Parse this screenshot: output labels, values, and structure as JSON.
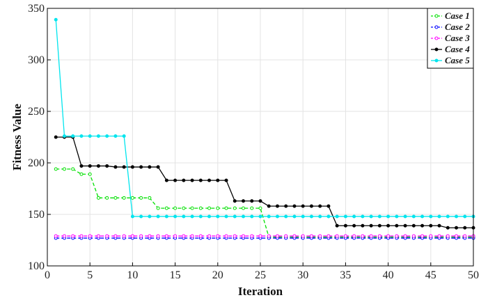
{
  "chart_data": {
    "type": "line",
    "xlabel": "Iteration",
    "ylabel": "Fitness Value",
    "xlim": [
      0,
      50
    ],
    "ylim": [
      100,
      350
    ],
    "xticks": [
      0,
      5,
      10,
      15,
      20,
      25,
      30,
      35,
      40,
      45,
      50
    ],
    "yticks": [
      100,
      150,
      200,
      250,
      300,
      350
    ],
    "grid": true,
    "legend_position": "top-right",
    "series": [
      {
        "name": "Case 1",
        "color": "#00e000",
        "dashed": true,
        "values": [
          194,
          194,
          194,
          189,
          189,
          166,
          166,
          166,
          166,
          166,
          166,
          166,
          156,
          156,
          156,
          156,
          156,
          156,
          156,
          156,
          156,
          156,
          156,
          156,
          156,
          128,
          128,
          128,
          128,
          128,
          128,
          128,
          128,
          128,
          128,
          128,
          128,
          128,
          128,
          128,
          128,
          128,
          128,
          128,
          128,
          128,
          128,
          128,
          128,
          128
        ]
      },
      {
        "name": "Case 2",
        "color": "#0000ff",
        "dashed": true,
        "values": [
          127,
          127,
          127,
          127,
          127,
          127,
          127,
          127,
          127,
          127,
          127,
          127,
          127,
          127,
          127,
          127,
          127,
          127,
          127,
          127,
          127,
          127,
          127,
          127,
          127,
          127,
          127,
          127,
          127,
          127,
          127,
          127,
          127,
          127,
          127,
          127,
          127,
          127,
          127,
          127,
          127,
          127,
          127,
          127,
          127,
          127,
          127,
          127,
          127,
          127
        ]
      },
      {
        "name": "Case 3",
        "color": "#ff00ff",
        "dashed": true,
        "values": [
          129,
          129,
          129,
          129,
          129,
          129,
          129,
          129,
          129,
          129,
          129,
          129,
          129,
          129,
          129,
          129,
          129,
          129,
          129,
          129,
          129,
          129,
          129,
          129,
          129,
          129,
          129,
          129,
          129,
          129,
          129,
          129,
          129,
          129,
          129,
          129,
          129,
          129,
          129,
          129,
          129,
          129,
          129,
          129,
          129,
          129,
          129,
          129,
          129,
          129
        ]
      },
      {
        "name": "Case 4",
        "color": "#000000",
        "dashed": false,
        "values": [
          225,
          225,
          225,
          197,
          197,
          197,
          197,
          196,
          196,
          196,
          196,
          196,
          196,
          183,
          183,
          183,
          183,
          183,
          183,
          183,
          183,
          163,
          163,
          163,
          163,
          158,
          158,
          158,
          158,
          158,
          158,
          158,
          158,
          139,
          139,
          139,
          139,
          139,
          139,
          139,
          139,
          139,
          139,
          139,
          139,
          139,
          137,
          137,
          137,
          137
        ]
      },
      {
        "name": "Case 5",
        "color": "#00e5ee",
        "dashed": false,
        "values": [
          339,
          226,
          226,
          226,
          226,
          226,
          226,
          226,
          226,
          148,
          148,
          148,
          148,
          148,
          148,
          148,
          148,
          148,
          148,
          148,
          148,
          148,
          148,
          148,
          148,
          148,
          148,
          148,
          148,
          148,
          148,
          148,
          148,
          148,
          148,
          148,
          148,
          148,
          148,
          148,
          148,
          148,
          148,
          148,
          148,
          148,
          148,
          148,
          148,
          148
        ]
      }
    ]
  }
}
